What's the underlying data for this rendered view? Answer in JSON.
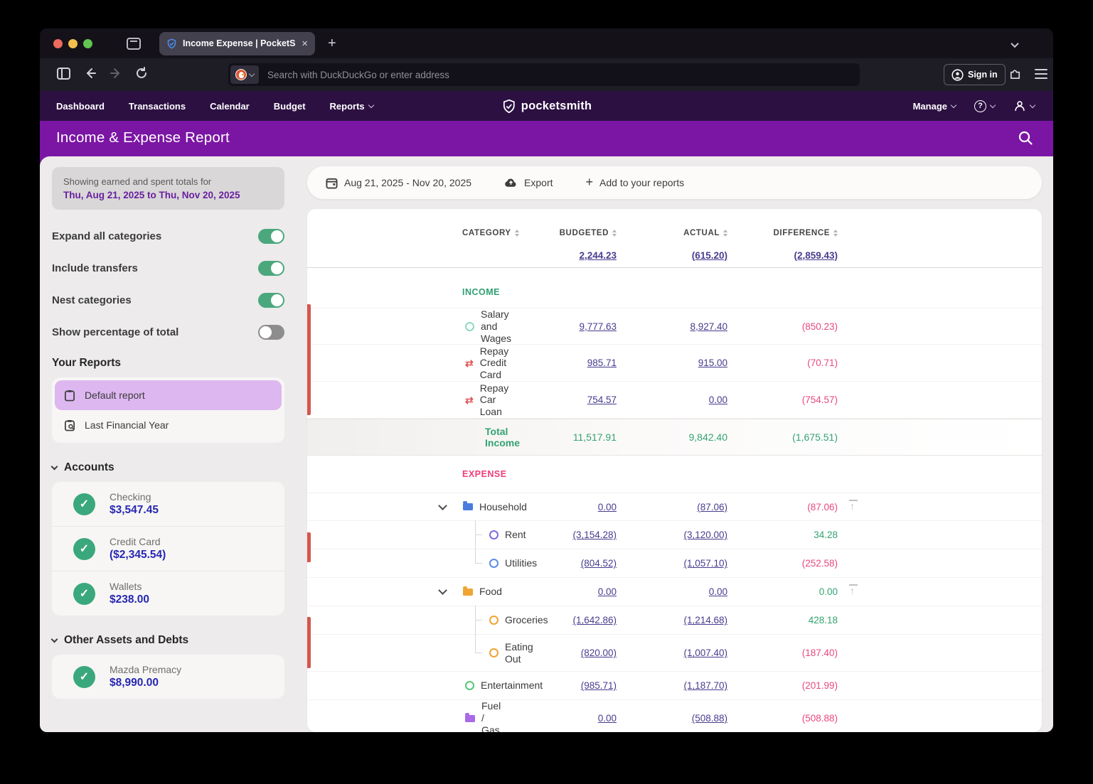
{
  "browser": {
    "tab_title": "Income Expense | PocketSmith",
    "address_placeholder": "Search with DuckDuckGo or enter address",
    "sign_in_label": "Sign in",
    "close_glyph": "×",
    "new_tab_glyph": "+"
  },
  "nav": {
    "items": [
      {
        "label": "Dashboard",
        "dropdown": false
      },
      {
        "label": "Transactions",
        "dropdown": false
      },
      {
        "label": "Calendar",
        "dropdown": false
      },
      {
        "label": "Budget",
        "dropdown": false
      },
      {
        "label": "Reports",
        "dropdown": true
      }
    ],
    "brand": "pocketsmith",
    "manage_label": "Manage",
    "help_glyph": "?"
  },
  "page_title": "Income & Expense Report",
  "sidebar": {
    "summary_line1": "Showing earned and spent totals for",
    "summary_line2": "Thu, Aug 21, 2025 to Thu, Nov 20, 2025",
    "toggles": [
      {
        "label": "Expand all categories",
        "on": true
      },
      {
        "label": "Include transfers",
        "on": true
      },
      {
        "label": "Nest categories",
        "on": true
      },
      {
        "label": "Show percentage of total",
        "on": false
      }
    ],
    "your_reports_title": "Your Reports",
    "reports": [
      {
        "label": "Default report",
        "selected": true,
        "icon": "clipboard-icon"
      },
      {
        "label": "Last Financial Year",
        "selected": false,
        "icon": "clipboard-search-icon"
      }
    ],
    "accounts_title": "Accounts",
    "accounts": [
      {
        "name": "Checking",
        "balance": "$3,547.45"
      },
      {
        "name": "Credit Card",
        "balance": "($2,345.54)"
      },
      {
        "name": "Wallets",
        "balance": "$238.00"
      }
    ],
    "other_title": "Other Assets and Debts",
    "other_accounts": [
      {
        "name": "Mazda Premacy",
        "balance": "$8,990.00"
      }
    ]
  },
  "report_toolbar": {
    "date_range": "Aug 21, 2025 - Nov 20, 2025",
    "export_label": "Export",
    "add_label": "Add to your reports"
  },
  "table": {
    "columns": [
      "CATEGORY",
      "BUDGETED",
      "ACTUAL",
      "DIFFERENCE"
    ],
    "totals": {
      "budgeted": "2,244.23",
      "actual": "(615.20)",
      "difference": "(2,859.43)"
    },
    "income": {
      "label": "INCOME",
      "rows": [
        {
          "name": "Salary and Wages",
          "icon": "ring",
          "color": "#8fd9be",
          "budgeted": "9,777.63",
          "actual": "8,927.40",
          "difference": "(850.23)",
          "diff": "neg"
        },
        {
          "name": "Repay Credit Card",
          "icon": "transfer",
          "color": "#e05252",
          "budgeted": "985.71",
          "actual": "915.00",
          "difference": "(70.71)",
          "diff": "neg"
        },
        {
          "name": "Repay Car Loan",
          "icon": "transfer",
          "color": "#e05252",
          "budgeted": "754.57",
          "actual": "0.00",
          "difference": "(754.57)",
          "diff": "neg"
        }
      ],
      "total": {
        "label": "Total Income",
        "budgeted": "11,517.91",
        "actual": "9,842.40",
        "difference": "(1,675.51)",
        "diff": "neg"
      }
    },
    "expense": {
      "label": "EXPENSE",
      "rows": [
        {
          "name": "Household",
          "icon": "folder",
          "color": "#4a7ce0",
          "level": "parent",
          "budgeted": "0.00",
          "actual": "(87.06)",
          "difference": "(87.06)",
          "diff": "neg",
          "collapse": true
        },
        {
          "name": "Rent",
          "icon": "ring",
          "color": "#7a6ee0",
          "level": "child",
          "budgeted": "(3,154.28)",
          "actual": "(3,120.00)",
          "difference": "34.28",
          "diff": "pos"
        },
        {
          "name": "Utilities",
          "icon": "ring",
          "color": "#5a8ee8",
          "level": "child",
          "last": true,
          "budgeted": "(804.52)",
          "actual": "(1,057.10)",
          "difference": "(252.58)",
          "diff": "neg"
        },
        {
          "name": "Food",
          "icon": "folder",
          "color": "#f0a433",
          "level": "parent",
          "budgeted": "0.00",
          "actual": "0.00",
          "difference": "0.00",
          "diff": "pos",
          "collapse": true
        },
        {
          "name": "Groceries",
          "icon": "ring",
          "color": "#f0a433",
          "level": "child",
          "budgeted": "(1,642.86)",
          "actual": "(1,214.68)",
          "difference": "428.18",
          "diff": "pos"
        },
        {
          "name": "Eating Out",
          "icon": "ring",
          "color": "#f0a433",
          "level": "child",
          "last": true,
          "tall": true,
          "budgeted": "(820.00)",
          "actual": "(1,007.40)",
          "difference": "(187.40)",
          "diff": "neg"
        },
        {
          "name": "Entertainment",
          "icon": "ring",
          "color": "#55c878",
          "level": "top",
          "budgeted": "(985.71)",
          "actual": "(1,187.70)",
          "difference": "(201.99)",
          "diff": "neg"
        },
        {
          "name": "Fuel / Gas",
          "icon": "folder",
          "color": "#a86ae8",
          "level": "top",
          "budgeted": "0.00",
          "actual": "(508.88)",
          "difference": "(508.88)",
          "diff": "neg"
        }
      ]
    }
  },
  "colors": {
    "brand_purple": "#7b16a4",
    "nav_purple": "#2c1042",
    "toggle_on_green": "#4aa87c",
    "positive_green": "#33a373",
    "negative_pink": "#e8487f",
    "link_indigo": "#463c8e",
    "balance_blue": "#2727b3",
    "selected_report_lilac": "#ddb7f0",
    "overbudget_bar_red": "#d4574e"
  }
}
